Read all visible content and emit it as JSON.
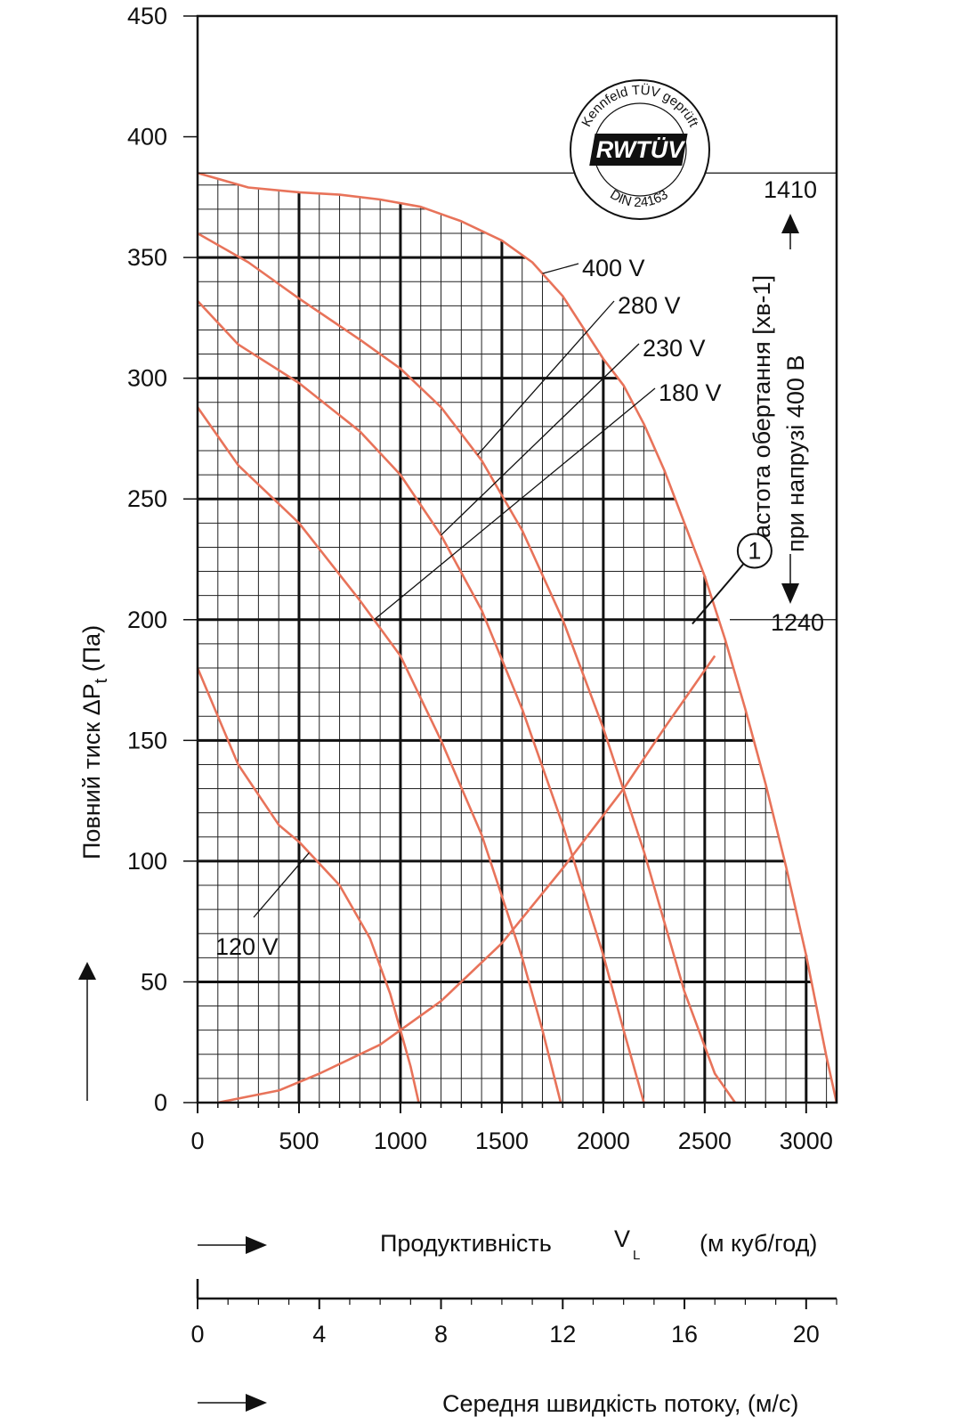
{
  "chart_data": {
    "type": "line",
    "title": "",
    "ylabel_main": "Повний тиск ",
    "ylabel_sym": "ΔP",
    "ylabel_sub": "t",
    "ylabel_unit": " (Па)",
    "xlabel": "Продуктивність",
    "xlabel_sym": "V",
    "xlabel_sub": "L",
    "xlabel_unit": "(м куб/год)",
    "x2label": "Середня швидкість потоку, (м/с)",
    "xlim": [
      0,
      3150
    ],
    "ylim": [
      0,
      450
    ],
    "x_ticks": [
      "0",
      "500",
      "1000",
      "1500",
      "2000",
      "2500",
      "3000"
    ],
    "y_ticks": [
      "0",
      "50",
      "100",
      "150",
      "200",
      "250",
      "300",
      "350",
      "400",
      "450"
    ],
    "x2_ticks": [
      "0",
      "4",
      "8",
      "12",
      "16",
      "20"
    ],
    "x2_tick_values": [
      0,
      4,
      8,
      12,
      16,
      20
    ],
    "x2_scale_m3h_per_ms": 150,
    "grid": "fine 100 × 10 within performance envelope",
    "series": [
      {
        "name": "400 V",
        "color": "#e8735a",
        "x": [
          0,
          250,
          500,
          700,
          900,
          1100,
          1300,
          1500,
          1650,
          1800,
          2000,
          2100,
          2200,
          2300,
          2400,
          2500,
          2600,
          2700,
          2800,
          2900,
          3000,
          3100,
          3150
        ],
        "y": [
          385,
          379,
          377,
          376,
          374,
          371,
          365,
          357,
          348,
          334,
          308,
          297,
          281,
          262,
          240,
          218,
          192,
          163,
          132,
          98,
          61,
          19,
          0
        ]
      },
      {
        "name": "280 V",
        "color": "#e8735a",
        "x": [
          0,
          250,
          500,
          800,
          1000,
          1200,
          1400,
          1600,
          1800,
          2000,
          2200,
          2400,
          2550,
          2650
        ],
        "y": [
          360,
          348,
          333,
          316,
          304,
          288,
          266,
          237,
          200,
          155,
          104,
          46,
          12,
          0
        ]
      },
      {
        "name": "230 V",
        "color": "#e8735a",
        "x": [
          0,
          200,
          500,
          800,
          1000,
          1200,
          1400,
          1600,
          1800,
          2000,
          2100,
          2200
        ],
        "y": [
          332,
          314,
          298,
          278,
          260,
          235,
          204,
          163,
          115,
          61,
          30,
          0
        ]
      },
      {
        "name": "180 V",
        "color": "#e8735a",
        "x": [
          0,
          200,
          500,
          800,
          1000,
          1200,
          1400,
          1600,
          1700,
          1790
        ],
        "y": [
          288,
          264,
          240,
          208,
          185,
          150,
          111,
          60,
          30,
          0
        ]
      },
      {
        "name": "120 V",
        "color": "#e8735a",
        "x": [
          0,
          200,
          400,
          500,
          700,
          850,
          950,
          1050,
          1090
        ],
        "y": [
          180,
          140,
          115,
          108,
          90,
          68,
          45,
          15,
          0
        ]
      },
      {
        "name": "system-curve",
        "color": "#e8735a",
        "x": [
          100,
          400,
          600,
          900,
          1200,
          1500,
          1800,
          2100,
          2300,
          2450,
          2550
        ],
        "y": [
          0,
          5,
          12,
          24,
          42,
          66,
          97,
          130,
          155,
          173,
          185
        ]
      }
    ],
    "annotations": {
      "rpm_label": "Частота  обертання [хв-1]",
      "voltage_label": "при напрузі 400 В",
      "rpm_high": "1410",
      "rpm_low": "1240",
      "rpm_high_y": 385,
      "rpm_low_y": 200,
      "point_marker": "1",
      "point_marker_x": 2430,
      "point_marker_y": 213,
      "badge_top": "Kennfeld TÜV geprüft",
      "badge_logo": "RWTÜV",
      "badge_bottom": "DIN 24163"
    }
  }
}
